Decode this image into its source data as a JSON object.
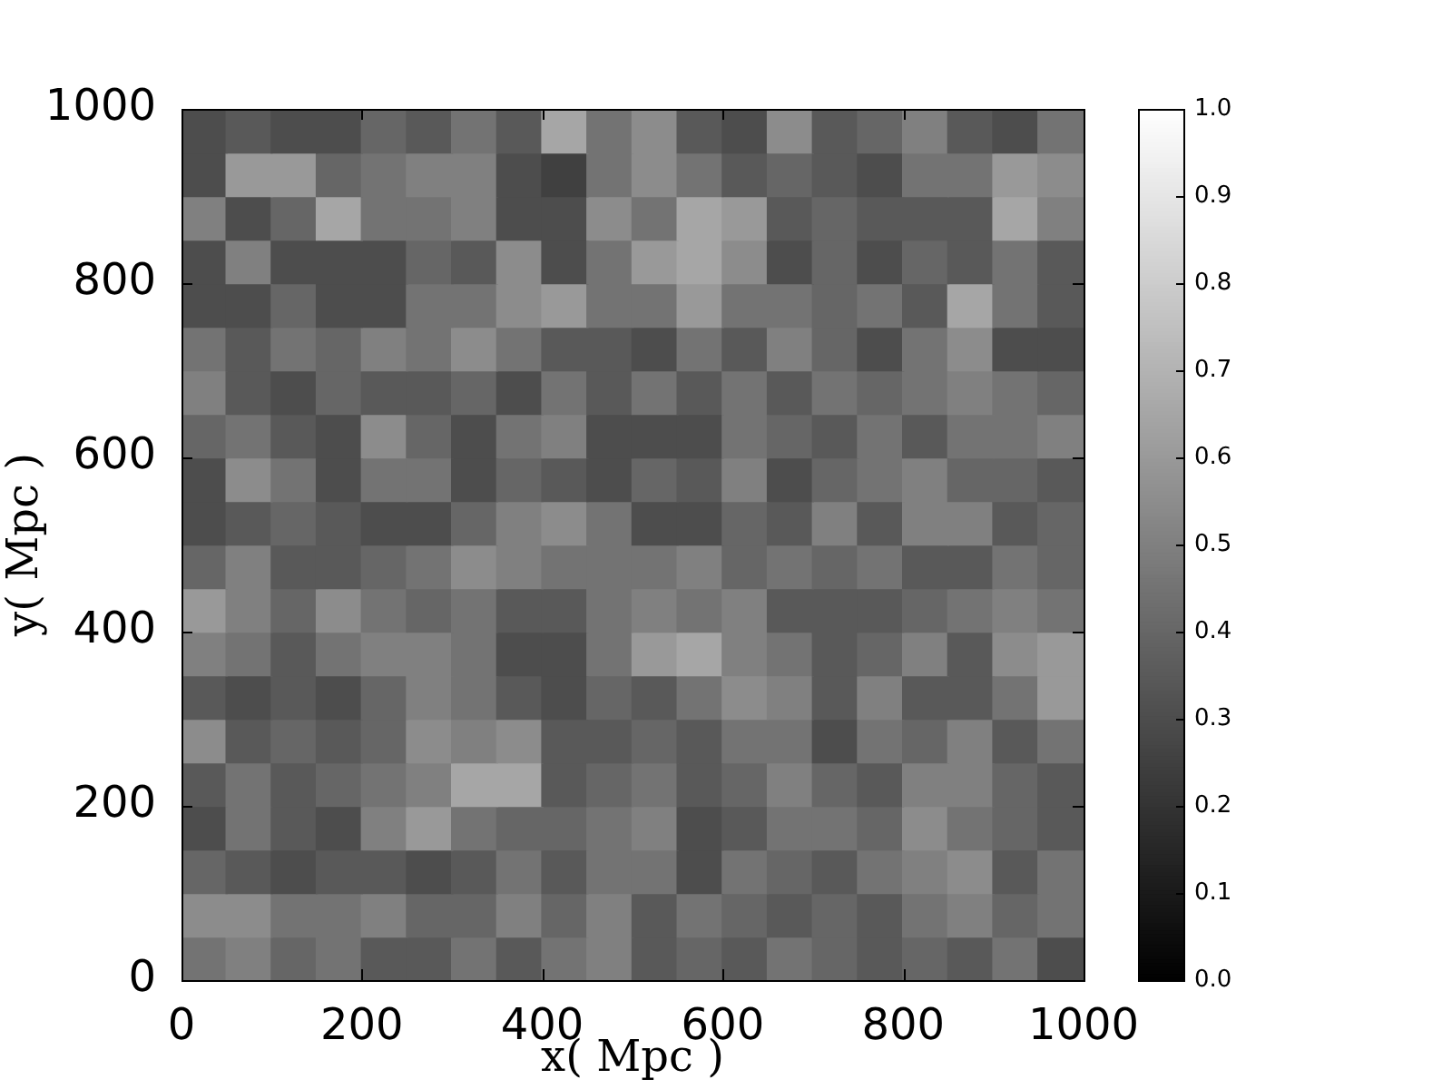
{
  "chart_data": {
    "type": "heatmap",
    "xlabel": "x( Mpc )",
    "ylabel": "y( Mpc )",
    "xlim": [
      0,
      1000
    ],
    "ylim": [
      0,
      1000
    ],
    "xticks": [
      0,
      200,
      400,
      600,
      800,
      1000
    ],
    "yticks": [
      0,
      200,
      400,
      600,
      800,
      1000
    ],
    "clim": [
      0,
      1
    ],
    "cticks": [
      {
        "value": 0,
        "label": "0.0"
      },
      0.1,
      0.2,
      0.3,
      0.4,
      0.5,
      0.6,
      0.7,
      0.8,
      0.9,
      {
        "value": 1,
        "label": "1.0"
      }
    ],
    "cells": [
      [
        0.3,
        0.35,
        0.3,
        0.3,
        0.4,
        0.35,
        0.45,
        0.35,
        0.65,
        0.45,
        0.55,
        0.35,
        0.3,
        0.55,
        0.35,
        0.4,
        0.5,
        0.35,
        0.3,
        0.45
      ],
      [
        0.3,
        0.6,
        0.6,
        0.4,
        0.45,
        0.5,
        0.5,
        0.3,
        0.25,
        0.45,
        0.55,
        0.45,
        0.35,
        0.4,
        0.35,
        0.3,
        0.45,
        0.45,
        0.6,
        0.55
      ],
      [
        0.5,
        0.3,
        0.4,
        0.65,
        0.45,
        0.45,
        0.5,
        0.3,
        0.3,
        0.55,
        0.45,
        0.65,
        0.6,
        0.35,
        0.4,
        0.35,
        0.35,
        0.35,
        0.65,
        0.5
      ],
      [
        0.3,
        0.5,
        0.3,
        0.3,
        0.3,
        0.4,
        0.35,
        0.55,
        0.3,
        0.45,
        0.6,
        0.65,
        0.55,
        0.3,
        0.4,
        0.3,
        0.4,
        0.35,
        0.45,
        0.35
      ],
      [
        0.3,
        0.3,
        0.4,
        0.3,
        0.3,
        0.45,
        0.45,
        0.55,
        0.6,
        0.45,
        0.45,
        0.6,
        0.45,
        0.45,
        0.4,
        0.45,
        0.35,
        0.65,
        0.45,
        0.35
      ],
      [
        0.45,
        0.35,
        0.45,
        0.4,
        0.5,
        0.45,
        0.55,
        0.45,
        0.35,
        0.35,
        0.3,
        0.45,
        0.35,
        0.5,
        0.4,
        0.3,
        0.45,
        0.55,
        0.3,
        0.3
      ],
      [
        0.5,
        0.35,
        0.3,
        0.4,
        0.35,
        0.35,
        0.4,
        0.3,
        0.45,
        0.35,
        0.45,
        0.35,
        0.45,
        0.35,
        0.45,
        0.4,
        0.45,
        0.5,
        0.45,
        0.4
      ],
      [
        0.4,
        0.45,
        0.35,
        0.3,
        0.55,
        0.4,
        0.3,
        0.45,
        0.5,
        0.3,
        0.3,
        0.3,
        0.45,
        0.4,
        0.35,
        0.45,
        0.35,
        0.45,
        0.45,
        0.5
      ],
      [
        0.3,
        0.55,
        0.45,
        0.3,
        0.45,
        0.45,
        0.3,
        0.4,
        0.35,
        0.3,
        0.4,
        0.35,
        0.5,
        0.3,
        0.4,
        0.45,
        0.5,
        0.4,
        0.4,
        0.35
      ],
      [
        0.3,
        0.35,
        0.4,
        0.35,
        0.3,
        0.3,
        0.4,
        0.5,
        0.55,
        0.45,
        0.3,
        0.3,
        0.4,
        0.35,
        0.5,
        0.35,
        0.5,
        0.5,
        0.35,
        0.4
      ],
      [
        0.4,
        0.5,
        0.35,
        0.35,
        0.4,
        0.45,
        0.55,
        0.5,
        0.45,
        0.45,
        0.45,
        0.5,
        0.4,
        0.45,
        0.4,
        0.45,
        0.35,
        0.35,
        0.45,
        0.4
      ],
      [
        0.6,
        0.5,
        0.4,
        0.55,
        0.45,
        0.4,
        0.45,
        0.35,
        0.35,
        0.45,
        0.5,
        0.45,
        0.5,
        0.35,
        0.35,
        0.35,
        0.4,
        0.45,
        0.5,
        0.45
      ],
      [
        0.5,
        0.45,
        0.35,
        0.45,
        0.5,
        0.5,
        0.45,
        0.3,
        0.3,
        0.45,
        0.6,
        0.65,
        0.5,
        0.45,
        0.35,
        0.4,
        0.5,
        0.35,
        0.55,
        0.6
      ],
      [
        0.35,
        0.3,
        0.35,
        0.3,
        0.4,
        0.5,
        0.45,
        0.35,
        0.3,
        0.4,
        0.35,
        0.45,
        0.55,
        0.5,
        0.35,
        0.5,
        0.35,
        0.35,
        0.45,
        0.6
      ],
      [
        0.55,
        0.35,
        0.4,
        0.35,
        0.4,
        0.55,
        0.5,
        0.55,
        0.35,
        0.35,
        0.4,
        0.35,
        0.45,
        0.45,
        0.3,
        0.45,
        0.4,
        0.5,
        0.35,
        0.45
      ],
      [
        0.35,
        0.45,
        0.35,
        0.4,
        0.45,
        0.5,
        0.65,
        0.65,
        0.35,
        0.4,
        0.45,
        0.35,
        0.4,
        0.5,
        0.4,
        0.35,
        0.5,
        0.5,
        0.4,
        0.35
      ],
      [
        0.3,
        0.45,
        0.35,
        0.3,
        0.5,
        0.6,
        0.45,
        0.4,
        0.4,
        0.45,
        0.5,
        0.3,
        0.35,
        0.45,
        0.45,
        0.4,
        0.55,
        0.45,
        0.4,
        0.35
      ],
      [
        0.4,
        0.35,
        0.3,
        0.35,
        0.35,
        0.3,
        0.35,
        0.45,
        0.35,
        0.45,
        0.45,
        0.3,
        0.45,
        0.4,
        0.35,
        0.45,
        0.5,
        0.55,
        0.35,
        0.45
      ],
      [
        0.55,
        0.55,
        0.45,
        0.45,
        0.5,
        0.4,
        0.4,
        0.5,
        0.4,
        0.5,
        0.35,
        0.45,
        0.4,
        0.35,
        0.4,
        0.35,
        0.45,
        0.5,
        0.4,
        0.45
      ],
      [
        0.45,
        0.5,
        0.4,
        0.45,
        0.35,
        0.35,
        0.45,
        0.35,
        0.45,
        0.5,
        0.35,
        0.4,
        0.35,
        0.45,
        0.4,
        0.35,
        0.4,
        0.35,
        0.45,
        0.3
      ]
    ]
  }
}
